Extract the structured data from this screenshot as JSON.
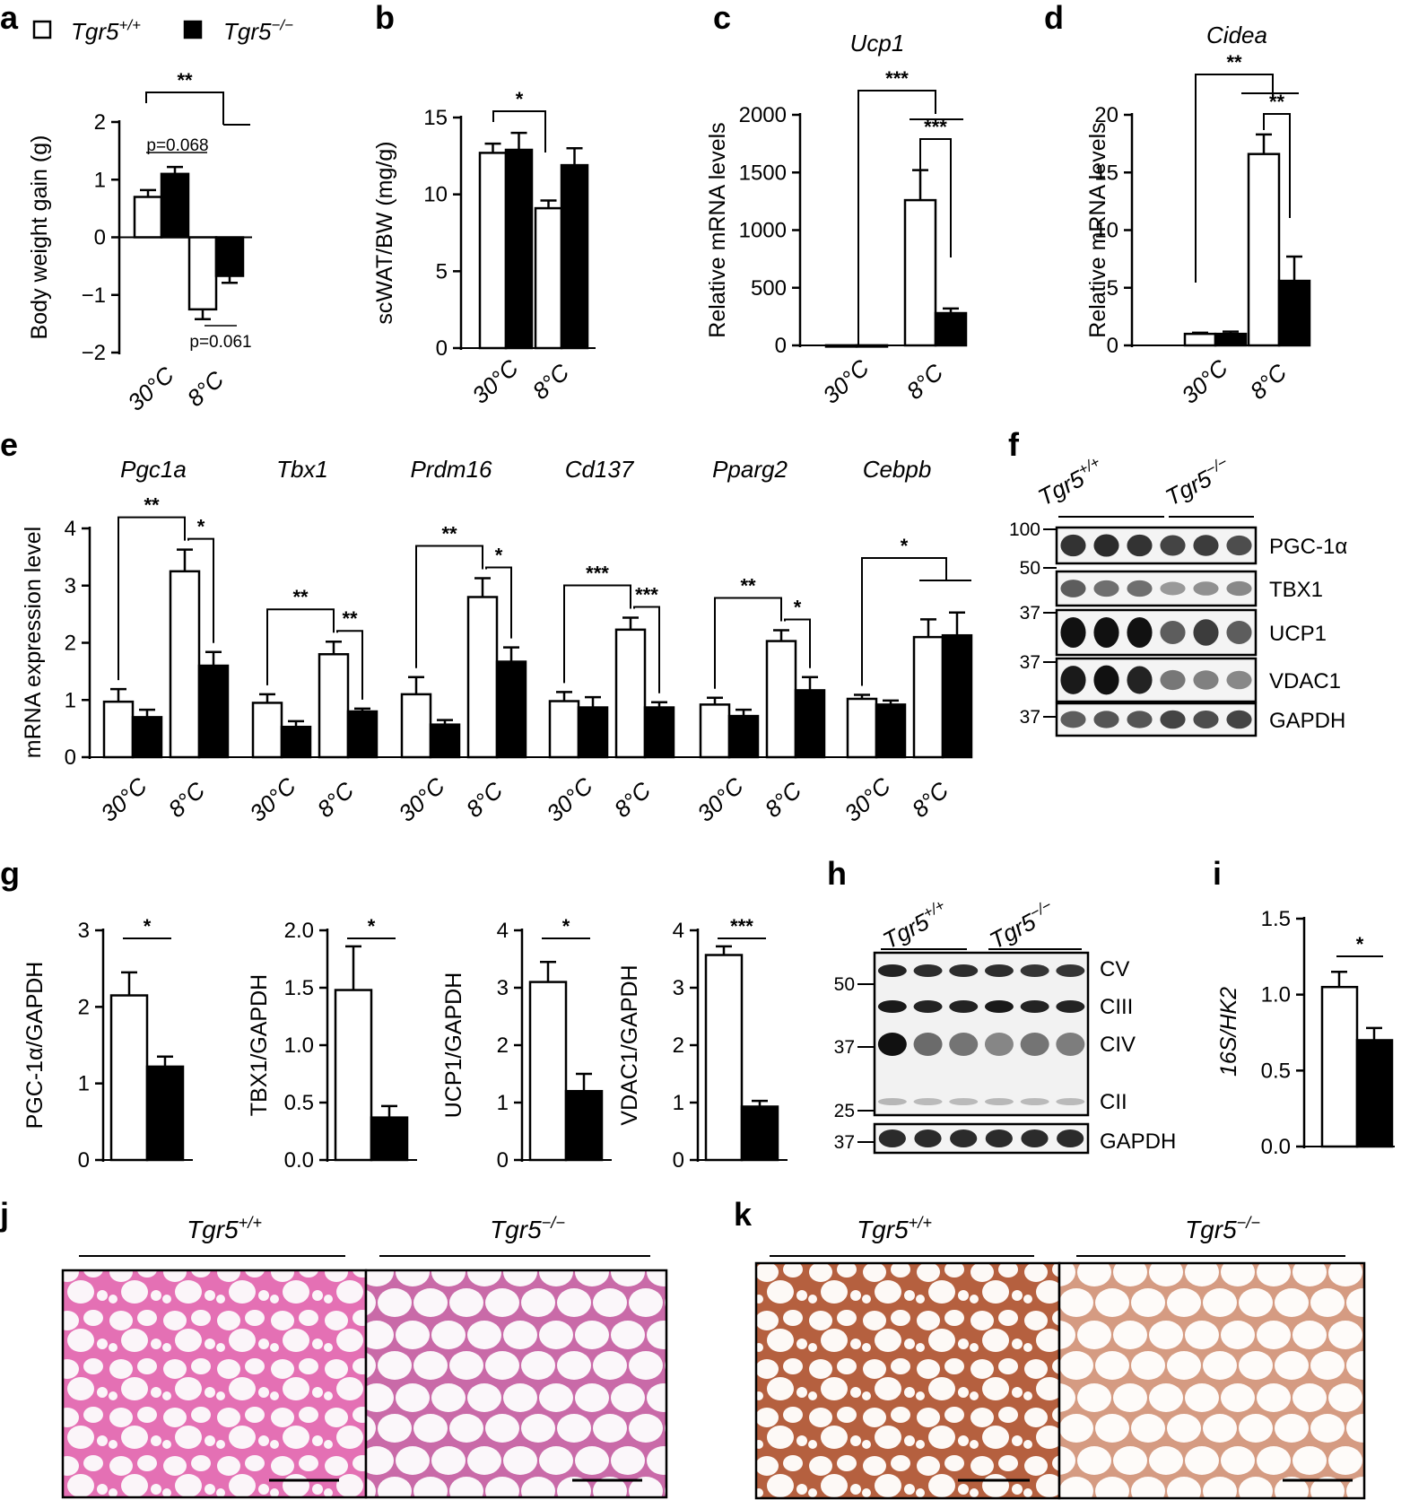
{
  "legend": {
    "wt": "Tgr5",
    "wt_sup": "+/+",
    "ko": "Tgr5",
    "ko_sup": "−/−"
  },
  "group_labels": {
    "wt": "Tgr5",
    "wt_sup": "+/+",
    "ko": "Tgr5",
    "ko_sup": "−/−"
  },
  "chart_data": [
    {
      "panel": "a",
      "type": "bar",
      "title": "",
      "ylabel": "Body weight gain (g)",
      "categories": [
        "30°C",
        "8°C"
      ],
      "ylim": [
        -2,
        2
      ],
      "yticks": [
        "−2",
        "−1",
        "0",
        "1",
        "2"
      ],
      "series": [
        {
          "name": "Tgr5+/+",
          "values": [
            0.7,
            -1.25
          ],
          "err": [
            0.12,
            0.17
          ]
        },
        {
          "name": "Tgr5−/−",
          "values": [
            1.1,
            -0.67
          ],
          "err": [
            0.12,
            0.12
          ]
        }
      ],
      "annotations": [
        "**",
        "p=0.068",
        "p=0.061"
      ]
    },
    {
      "panel": "b",
      "type": "bar",
      "title": "",
      "ylabel": "scWAT/BW (mg/g)",
      "categories": [
        "30°C",
        "8°C"
      ],
      "ylim": [
        0,
        15
      ],
      "yticks": [
        "0",
        "5",
        "10",
        "15"
      ],
      "series": [
        {
          "name": "Tgr5+/+",
          "values": [
            12.7,
            9.1
          ],
          "err": [
            0.6,
            0.5
          ]
        },
        {
          "name": "Tgr5−/−",
          "values": [
            12.9,
            11.9
          ],
          "err": [
            1.1,
            1.1
          ]
        }
      ],
      "annotations": [
        "*"
      ]
    },
    {
      "panel": "c",
      "type": "bar",
      "title": "Ucp1",
      "ylabel": "Relative mRNA levels",
      "categories": [
        "30°C",
        "8°C"
      ],
      "ylim": [
        0,
        2000
      ],
      "yticks": [
        "0",
        "500",
        "1000",
        "1500",
        "2000"
      ],
      "series": [
        {
          "name": "Tgr5+/+",
          "values": [
            1,
            1260
          ],
          "err": [
            0,
            260
          ]
        },
        {
          "name": "Tgr5−/−",
          "values": [
            1,
            280
          ],
          "err": [
            0,
            40
          ]
        }
      ],
      "annotations": [
        "***",
        "***"
      ]
    },
    {
      "panel": "d",
      "type": "bar",
      "title": "Cidea",
      "ylabel": "Relative mRNA levels",
      "categories": [
        "30°C",
        "8°C"
      ],
      "ylim": [
        0,
        20
      ],
      "yticks": [
        "0",
        "5",
        "10",
        "15",
        "20"
      ],
      "series": [
        {
          "name": "Tgr5+/+",
          "values": [
            1.0,
            16.6
          ],
          "err": [
            0.1,
            1.7
          ]
        },
        {
          "name": "Tgr5−/−",
          "values": [
            1.0,
            5.6
          ],
          "err": [
            0.2,
            2.1
          ]
        }
      ],
      "annotations": [
        "**",
        "**"
      ]
    },
    {
      "panel": "e",
      "type": "bar",
      "title": "",
      "ylabel": "mRNA expression level",
      "ylim": [
        0,
        4
      ],
      "yticks": [
        "0",
        "1",
        "2",
        "3",
        "4"
      ],
      "groups": [
        {
          "gene": "Pgc1a",
          "categories": [
            "30°C",
            "8°C"
          ],
          "wt": [
            0.97,
            3.25
          ],
          "ko": [
            0.7,
            1.6
          ],
          "wt_err": [
            0.22,
            0.38
          ],
          "ko_err": [
            0.13,
            0.24
          ],
          "stars": [
            "**",
            "*"
          ]
        },
        {
          "gene": "Tbx1",
          "categories": [
            "30°C",
            "8°C"
          ],
          "wt": [
            0.95,
            1.8
          ],
          "ko": [
            0.53,
            0.8
          ],
          "wt_err": [
            0.15,
            0.22
          ],
          "ko_err": [
            0.1,
            0.05
          ],
          "stars": [
            "**",
            "**"
          ]
        },
        {
          "gene": "Prdm16",
          "categories": [
            "30°C",
            "8°C"
          ],
          "wt": [
            1.1,
            2.8
          ],
          "ko": [
            0.57,
            1.67
          ],
          "wt_err": [
            0.3,
            0.33
          ],
          "ko_err": [
            0.08,
            0.25
          ],
          "stars": [
            "**",
            "*"
          ]
        },
        {
          "gene": "Cd137",
          "categories": [
            "30°C",
            "8°C"
          ],
          "wt": [
            0.98,
            2.23
          ],
          "ko": [
            0.87,
            0.87
          ],
          "wt_err": [
            0.16,
            0.21
          ],
          "ko_err": [
            0.18,
            0.09
          ],
          "stars": [
            "***",
            "***"
          ]
        },
        {
          "gene": "Pparg2",
          "categories": [
            "30°C",
            "8°C"
          ],
          "wt": [
            0.92,
            2.03
          ],
          "ko": [
            0.72,
            1.17
          ],
          "wt_err": [
            0.12,
            0.19
          ],
          "ko_err": [
            0.11,
            0.23
          ],
          "stars": [
            "**",
            "*"
          ]
        },
        {
          "gene": "Cebpb",
          "categories": [
            "30°C",
            "8°C"
          ],
          "wt": [
            1.02,
            2.1
          ],
          "ko": [
            0.92,
            2.13
          ],
          "wt_err": [
            0.07,
            0.31
          ],
          "ko_err": [
            0.07,
            0.4
          ],
          "stars": [
            "*"
          ]
        }
      ]
    },
    {
      "panel": "g",
      "type": "bar",
      "title": "",
      "subpanels": [
        {
          "ylabel": "PGC-1α/GAPDH",
          "ylim": [
            0,
            3
          ],
          "yticks": [
            "0",
            "1",
            "2",
            "3"
          ],
          "values": [
            2.15,
            1.22
          ],
          "err": [
            0.3,
            0.13
          ],
          "star": "*"
        },
        {
          "ylabel": "TBX1/GAPDH",
          "ylim": [
            0,
            2.0
          ],
          "yticks": [
            "0.0",
            "0.5",
            "1.0",
            "1.5",
            "2.0"
          ],
          "values": [
            1.48,
            0.37
          ],
          "err": [
            0.38,
            0.1
          ],
          "star": "*"
        },
        {
          "ylabel": "UCP1/GAPDH",
          "ylim": [
            0,
            4
          ],
          "yticks": [
            "0",
            "1",
            "2",
            "3",
            "4"
          ],
          "values": [
            3.1,
            1.2
          ],
          "err": [
            0.35,
            0.3
          ],
          "star": "*"
        },
        {
          "ylabel": "VDAC1/GAPDH",
          "ylim": [
            0,
            4
          ],
          "yticks": [
            "0",
            "1",
            "2",
            "3",
            "4"
          ],
          "values": [
            3.57,
            0.93
          ],
          "err": [
            0.15,
            0.1
          ],
          "star": "***"
        }
      ]
    },
    {
      "panel": "i",
      "type": "bar",
      "title": "",
      "ylabel": "16S/HK2",
      "ylim": [
        0,
        1.5
      ],
      "yticks": [
        "0.0",
        "0.5",
        "1.0",
        "1.5"
      ],
      "values": [
        1.05,
        0.7
      ],
      "err": [
        0.1,
        0.08
      ],
      "star": "*"
    }
  ],
  "blots": {
    "f": {
      "markers": [
        "100",
        "50",
        "37",
        "37",
        "37"
      ],
      "bands": [
        "PGC-1α",
        "TBX1",
        "UCP1",
        "VDAC1",
        "GAPDH"
      ]
    },
    "h": {
      "markers": [
        "50",
        "37",
        "25",
        "37"
      ],
      "bands": [
        "CV",
        "CIII",
        "CIV",
        "CII",
        "GAPDH"
      ]
    }
  },
  "panel_letters": [
    "a",
    "b",
    "c",
    "d",
    "e",
    "f",
    "g",
    "h",
    "i",
    "j",
    "k"
  ],
  "colors": {
    "wt_fill": "#ffffff",
    "ko_fill": "#000000",
    "he_stain": "#d94aa0",
    "ucp1_stain": "#b5603f"
  }
}
